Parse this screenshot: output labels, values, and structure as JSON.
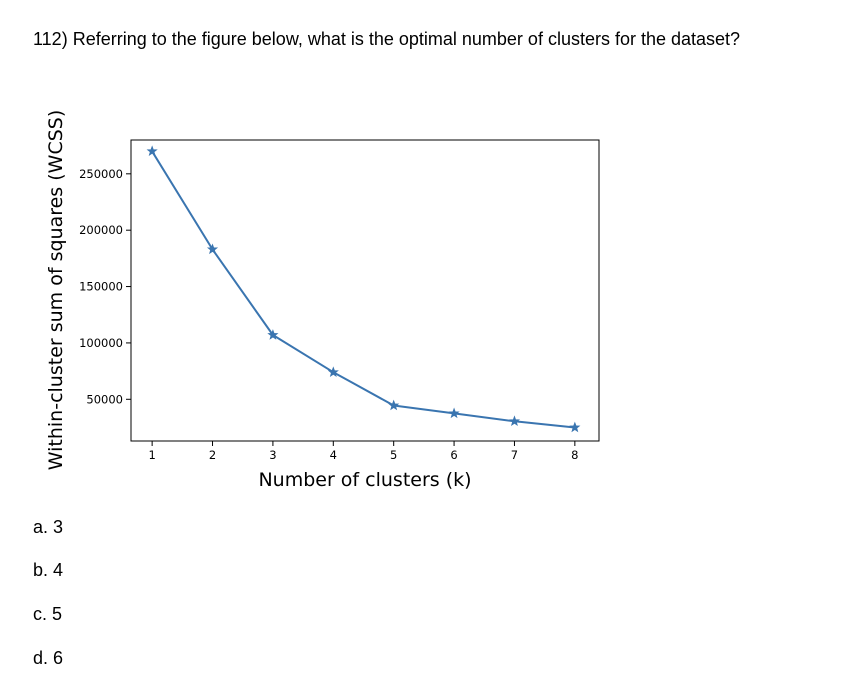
{
  "question": {
    "text": "112) Referring to the figure below, what is the optimal number of clusters for the dataset?"
  },
  "chart_data": {
    "type": "line",
    "x": [
      1,
      2,
      3,
      4,
      5,
      6,
      7,
      8
    ],
    "series": [
      {
        "values": [
          270000,
          183000,
          107000,
          74000,
          44500,
          37500,
          30500,
          25000
        ],
        "marker": "star",
        "color": "#3a75b0"
      }
    ],
    "xlabel": "Number of clusters (k)",
    "ylabel": "Within-cluster sum of squares (WCSS)",
    "xticks": [
      "1",
      "2",
      "3",
      "4",
      "5",
      "6",
      "7",
      "8"
    ],
    "yticks": [
      "50000",
      "100000",
      "150000",
      "200000",
      "250000"
    ],
    "ytick_values": [
      50000,
      100000,
      150000,
      200000,
      250000
    ],
    "xlim": [
      0.65,
      8.4
    ],
    "ylim": [
      13000,
      280000
    ],
    "grid": false
  },
  "options": [
    {
      "label": "a. 3"
    },
    {
      "label": "b. 4"
    },
    {
      "label": "c. 5"
    },
    {
      "label": "d. 6"
    }
  ]
}
